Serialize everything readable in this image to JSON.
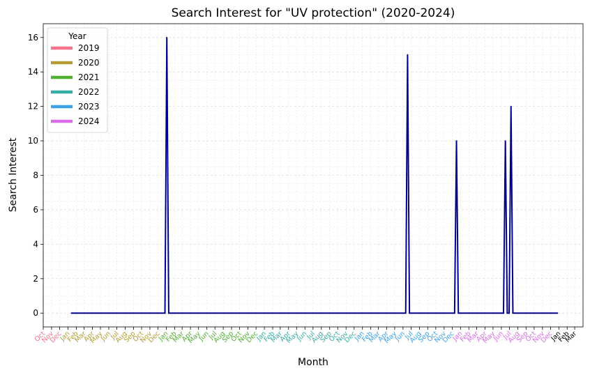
{
  "chart_data": {
    "type": "line",
    "title": "Search Interest for \"UV protection\" (2020-2024)",
    "xlabel": "Month",
    "ylabel": "Search Interest",
    "ylim": [
      -0.8,
      16.8
    ],
    "yticks": [
      0,
      2,
      4,
      6,
      8,
      10,
      12,
      14,
      16
    ],
    "grid": true,
    "line_color": "#00008b",
    "legend": {
      "title": "Year",
      "placement": "top-left",
      "entries": [
        {
          "label": "2019",
          "color": "#f77189"
        },
        {
          "label": "2020",
          "color": "#b59a32"
        },
        {
          "label": "2021",
          "color": "#50b131"
        },
        {
          "label": "2022",
          "color": "#36ada4"
        },
        {
          "label": "2023",
          "color": "#3ba3ec"
        },
        {
          "label": "2024",
          "color": "#dc6ceb"
        }
      ]
    },
    "tick_labels": [
      {
        "label": "Oct",
        "color": "#f77189"
      },
      {
        "label": "Nov",
        "color": "#f77189"
      },
      {
        "label": "Dec",
        "color": "#f77189"
      },
      {
        "label": "Jan",
        "color": "#b59a32"
      },
      {
        "label": "Feb",
        "color": "#b59a32"
      },
      {
        "label": "Mar",
        "color": "#b59a32"
      },
      {
        "label": "Apr",
        "color": "#b59a32"
      },
      {
        "label": "May",
        "color": "#b59a32"
      },
      {
        "label": "Jun",
        "color": "#b59a32"
      },
      {
        "label": "Jul",
        "color": "#b59a32"
      },
      {
        "label": "Aug",
        "color": "#b59a32"
      },
      {
        "label": "Sep",
        "color": "#b59a32"
      },
      {
        "label": "Oct",
        "color": "#b59a32"
      },
      {
        "label": "Nov",
        "color": "#b59a32"
      },
      {
        "label": "Dec",
        "color": "#b59a32"
      },
      {
        "label": "Jan",
        "color": "#50b131"
      },
      {
        "label": "Feb",
        "color": "#50b131"
      },
      {
        "label": "Mar",
        "color": "#50b131"
      },
      {
        "label": "Apr",
        "color": "#50b131"
      },
      {
        "label": "May",
        "color": "#50b131"
      },
      {
        "label": "Jun",
        "color": "#50b131"
      },
      {
        "label": "Jul",
        "color": "#50b131"
      },
      {
        "label": "Aug",
        "color": "#50b131"
      },
      {
        "label": "Sep",
        "color": "#50b131"
      },
      {
        "label": "Oct",
        "color": "#50b131"
      },
      {
        "label": "Nov",
        "color": "#50b131"
      },
      {
        "label": "Dec",
        "color": "#50b131"
      },
      {
        "label": "Jan",
        "color": "#36ada4"
      },
      {
        "label": "Feb",
        "color": "#36ada4"
      },
      {
        "label": "Mar",
        "color": "#36ada4"
      },
      {
        "label": "Apr",
        "color": "#36ada4"
      },
      {
        "label": "May",
        "color": "#36ada4"
      },
      {
        "label": "Jun",
        "color": "#36ada4"
      },
      {
        "label": "Jul",
        "color": "#36ada4"
      },
      {
        "label": "Aug",
        "color": "#36ada4"
      },
      {
        "label": "Sep",
        "color": "#36ada4"
      },
      {
        "label": "Oct",
        "color": "#36ada4"
      },
      {
        "label": "Nov",
        "color": "#36ada4"
      },
      {
        "label": "Dec",
        "color": "#36ada4"
      },
      {
        "label": "Jan",
        "color": "#3ba3ec"
      },
      {
        "label": "Feb",
        "color": "#3ba3ec"
      },
      {
        "label": "Mar",
        "color": "#3ba3ec"
      },
      {
        "label": "Apr",
        "color": "#3ba3ec"
      },
      {
        "label": "May",
        "color": "#3ba3ec"
      },
      {
        "label": "Jun",
        "color": "#3ba3ec"
      },
      {
        "label": "Jul",
        "color": "#3ba3ec"
      },
      {
        "label": "Aug",
        "color": "#3ba3ec"
      },
      {
        "label": "Sep",
        "color": "#3ba3ec"
      },
      {
        "label": "Oct",
        "color": "#3ba3ec"
      },
      {
        "label": "Nov",
        "color": "#3ba3ec"
      },
      {
        "label": "Dec",
        "color": "#3ba3ec"
      },
      {
        "label": "Jan",
        "color": "#dc6ceb"
      },
      {
        "label": "Feb",
        "color": "#dc6ceb"
      },
      {
        "label": "Mar",
        "color": "#dc6ceb"
      },
      {
        "label": "Apr",
        "color": "#dc6ceb"
      },
      {
        "label": "May",
        "color": "#dc6ceb"
      },
      {
        "label": "Jun",
        "color": "#dc6ceb"
      },
      {
        "label": "Jul",
        "color": "#dc6ceb"
      },
      {
        "label": "Aug",
        "color": "#dc6ceb"
      },
      {
        "label": "Sep",
        "color": "#dc6ceb"
      },
      {
        "label": "Oct",
        "color": "#dc6ceb"
      },
      {
        "label": "Nov",
        "color": "#dc6ceb"
      },
      {
        "label": "Dec",
        "color": "#dc6ceb"
      },
      {
        "label": "Jan",
        "color": "#000000"
      },
      {
        "label": "Feb",
        "color": "#000000"
      },
      {
        "label": "Mar",
        "color": "#000000"
      }
    ],
    "series": [
      {
        "x": [
          "2020-01-12",
          "2020-01-19",
          "2020-01-26",
          "2020-02-02",
          "2020-12-20",
          "2020-12-27",
          "2021-01-03",
          "2021-01-10",
          "2021-01-17",
          "2023-06-04",
          "2023-06-11",
          "2023-06-18",
          "2023-06-25",
          "2023-12-03",
          "2023-12-10",
          "2023-12-17",
          "2023-12-24",
          "2024-06-02",
          "2024-06-09",
          "2024-06-16",
          "2024-06-23",
          "2024-06-30",
          "2024-07-07",
          "2024-07-14",
          "2024-07-21",
          "2024-12-29"
        ],
        "y": [
          0,
          0,
          0,
          0,
          0,
          0,
          16,
          0,
          0,
          0,
          0,
          15,
          0,
          0,
          0,
          10,
          0,
          0,
          0,
          10,
          0,
          0,
          12,
          0,
          0,
          0
        ]
      }
    ]
  }
}
